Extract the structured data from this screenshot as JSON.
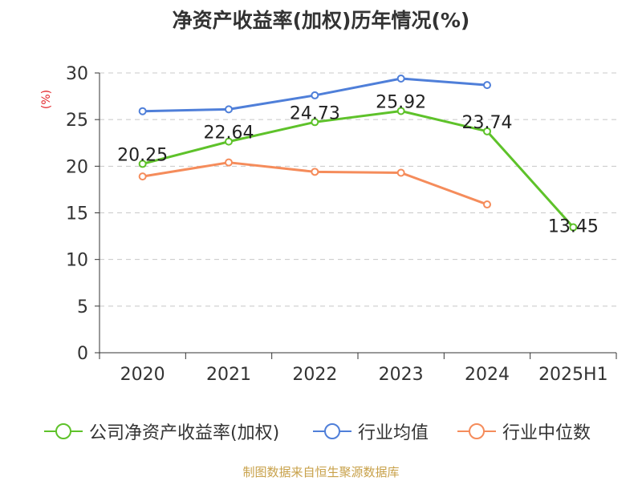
{
  "title": "净资产收益率(加权)历年情况(%)",
  "source": "制图数据来自恒生聚源数据库",
  "chart_data": {
    "type": "line",
    "title": "净资产收益率(加权)历年情况(%)",
    "ylabel": "(%)",
    "categories": [
      "2020",
      "2021",
      "2022",
      "2023",
      "2024",
      "2025H1"
    ],
    "yticks": [
      "0",
      "5",
      "10",
      "15",
      "20",
      "25",
      "30"
    ],
    "ylim": [
      0,
      30
    ],
    "grid": true,
    "legend_position": "bottom",
    "series": [
      {
        "name": "公司净资产收益率(加权)",
        "color": "#5ec22a",
        "values": [
          20.25,
          22.64,
          24.73,
          25.92,
          23.74,
          13.45
        ],
        "labels": [
          "20.25",
          "22.64",
          "24.73",
          "25.92",
          "23.74",
          "13.45"
        ]
      },
      {
        "name": "行业均值",
        "color": "#4f7fd9",
        "values": [
          25.9,
          26.1,
          27.6,
          29.4,
          28.7,
          null
        ],
        "labels": []
      },
      {
        "name": "行业中位数",
        "color": "#f58c5b",
        "values": [
          18.9,
          20.4,
          19.4,
          19.3,
          15.9,
          null
        ],
        "labels": []
      }
    ]
  }
}
